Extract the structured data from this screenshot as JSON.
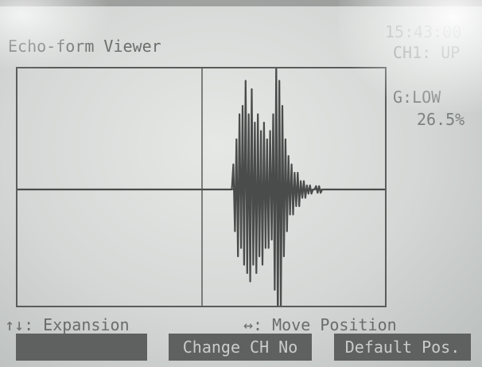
{
  "screen": {
    "title": "Echo-form Viewer",
    "time": "15:43:00",
    "channel": "CH1: UP",
    "gain": "G:LOW",
    "percent": "26.5%"
  },
  "help": {
    "vertical": "↑↓: Expansion",
    "horizontal": "↔: Move Position"
  },
  "softkeys": {
    "key1": "",
    "key2": "Change CH No",
    "key3": "Default Pos."
  },
  "colors": {
    "lcd_bg": "#d4d7d5",
    "lcd_ink": "#5a5c5b",
    "softkey_bg": "#5e6160"
  },
  "chart_data": {
    "type": "line",
    "title": "",
    "xlabel": "",
    "ylabel": "",
    "grid": false,
    "series": [
      {
        "values": [
          0,
          0,
          0,
          0,
          0,
          0,
          0,
          0,
          0,
          0,
          0,
          0,
          0,
          0,
          0,
          0,
          0,
          0,
          0,
          0,
          0,
          0,
          0,
          0,
          0,
          0,
          0,
          0,
          0,
          0,
          0,
          0,
          0,
          0,
          0,
          0,
          0,
          0,
          0,
          0,
          0,
          0,
          0,
          0,
          0,
          0,
          0,
          0,
          0,
          0,
          0,
          0,
          0,
          0,
          0,
          0,
          0,
          0,
          0,
          0,
          0,
          0,
          0,
          0,
          0,
          0,
          0,
          0,
          0,
          0,
          0,
          0,
          0,
          0,
          0,
          0,
          0,
          0,
          0,
          0,
          0,
          0,
          0,
          0,
          0,
          0,
          0,
          0,
          0,
          0,
          0,
          0,
          0,
          0,
          0,
          0,
          0,
          0,
          0,
          0,
          0,
          0,
          0,
          0,
          0,
          0,
          0,
          0,
          0,
          0,
          0,
          0,
          0,
          0,
          0,
          0,
          0,
          0,
          0,
          0,
          0,
          0,
          0,
          0,
          0,
          0,
          0,
          0,
          0,
          0,
          0,
          0,
          0,
          0,
          0,
          0,
          0,
          0,
          0,
          0,
          0,
          0.3,
          -0.5,
          0.6,
          -0.8,
          0.9,
          -0.7,
          1.0,
          -0.9,
          1.3,
          -1.0,
          0.9,
          -1.1,
          1.2,
          -0.9,
          0.8,
          -1.0,
          0.9,
          -0.8,
          0.7,
          -0.9,
          0.8,
          -0.7,
          0.6,
          -0.7,
          0.7,
          -0.6,
          0.9,
          -1.2,
          1.5,
          -1.6,
          1.3,
          -1.4,
          1.0,
          -0.8,
          0.6,
          -0.5,
          0.4,
          -0.3,
          0.3,
          -0.3,
          0.2,
          -0.2,
          0.2,
          -0.2,
          0.1,
          -0.1,
          0.1,
          -0.1,
          0.05,
          -0.05,
          0.05,
          -0.05,
          0,
          0,
          0.04,
          -0.04,
          0.04,
          -0.04,
          0,
          0,
          0,
          0,
          0,
          0,
          0,
          0,
          0,
          0,
          0,
          0,
          0,
          0,
          0,
          0,
          0,
          0,
          0,
          0,
          0,
          0,
          0,
          0,
          0,
          0,
          0,
          0,
          0,
          0,
          0,
          0,
          0,
          0,
          0,
          0,
          0,
          0,
          0,
          0,
          0,
          0
        ]
      }
    ]
  }
}
